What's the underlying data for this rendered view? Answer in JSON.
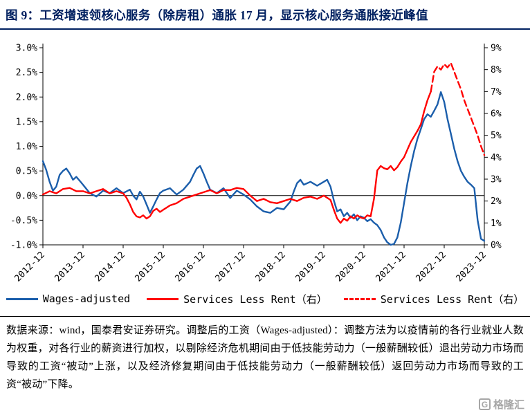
{
  "title": "图 9：工资增速领核心服务（除房租）通胀 17 月，显示核心服务通胀接近峰值",
  "note": "数据来源：wind，国泰君安证券研究。调整后的工资（Wages-adjusted）：调整方法为以疫情前的各行业就业人数为权重，对各行业的薪资进行加权，以剔除经济危机期间由于低技能劳动力（一般薪酬较低）退出劳动力市场而导致的工资“被动”上涨，以及经济修复期间由于低技能劳动力（一般薪酬较低）返回劳动力市场而导致的工资“被动”下降。",
  "watermark": {
    "text": "格隆汇",
    "icon_letter": "G"
  },
  "colors": {
    "title_accent": "#002060",
    "wages_blue": "#1b5eab",
    "services_red": "#ff0000"
  },
  "chart_data": {
    "type": "line",
    "title": "工资增速领核心服务（除房租）通胀 17 月",
    "x_unit": "months since 2012-12",
    "x_tick_labels": [
      "2012-12",
      "2013-12",
      "2014-12",
      "2015-12",
      "2016-12",
      "2017-12",
      "2018-12",
      "2019-12",
      "2020-12",
      "2021-12",
      "2022-12",
      "2023-12"
    ],
    "x_tick_positions": [
      0,
      12,
      24,
      36,
      48,
      60,
      72,
      84,
      96,
      108,
      120,
      132
    ],
    "x_range": [
      0,
      132
    ],
    "left_axis": {
      "min": -1.0,
      "max": 3.0,
      "step": 0.5,
      "tick_labels": [
        "3.0%",
        "2.5%",
        "2.0%",
        "1.5%",
        "1.0%",
        "0.5%",
        "0.0%",
        "-0.5%",
        "-1.0%"
      ]
    },
    "right_axis": {
      "min": 0,
      "max": 9,
      "step": 1,
      "tick_labels": [
        "9%",
        "8%",
        "7%",
        "6%",
        "5%",
        "4%",
        "3%",
        "2%",
        "1%",
        "0%"
      ]
    },
    "grid": false,
    "zero_line_left_axis": true,
    "legend_position": "bottom",
    "series": [
      {
        "name": "Wages-adjusted",
        "axis": "left",
        "color": "#1b5eab",
        "dash": false,
        "x": [
          0,
          1,
          2,
          3,
          4,
          5,
          6,
          7,
          8,
          9,
          10,
          11,
          12,
          14,
          16,
          18,
          20,
          22,
          24,
          26,
          27,
          28,
          29,
          30,
          31,
          32,
          33,
          34,
          35,
          36,
          38,
          40,
          42,
          44,
          45,
          46,
          47,
          48,
          49,
          50,
          52,
          54,
          56,
          58,
          60,
          62,
          64,
          66,
          68,
          70,
          72,
          74,
          75,
          76,
          77,
          78,
          80,
          82,
          84,
          85,
          86,
          87,
          88,
          89,
          90,
          91,
          92,
          93,
          94,
          95,
          96,
          97,
          98,
          99,
          100,
          101,
          102,
          103,
          104,
          105,
          106,
          107,
          108,
          109,
          110,
          111,
          112,
          113,
          114,
          115,
          116,
          117,
          118,
          119,
          120,
          121,
          122,
          123,
          124,
          125,
          126,
          127,
          128,
          129,
          130,
          131,
          132
        ],
        "y": [
          0.7,
          0.52,
          0.28,
          0.1,
          0.18,
          0.42,
          0.5,
          0.55,
          0.45,
          0.32,
          0.38,
          0.3,
          0.22,
          0.05,
          -0.02,
          0.1,
          0.05,
          0.15,
          0.05,
          0.12,
          0.0,
          -0.08,
          0.08,
          -0.02,
          -0.18,
          -0.35,
          -0.22,
          -0.08,
          0.05,
          0.1,
          0.15,
          0.02,
          0.12,
          0.28,
          0.42,
          0.55,
          0.6,
          0.45,
          0.28,
          0.12,
          0.05,
          0.15,
          -0.05,
          0.1,
          0.02,
          -0.08,
          -0.22,
          -0.32,
          -0.35,
          -0.25,
          -0.28,
          -0.12,
          0.08,
          0.25,
          0.32,
          0.22,
          0.28,
          0.2,
          0.28,
          0.32,
          0.18,
          -0.1,
          -0.32,
          -0.28,
          -0.42,
          -0.35,
          -0.45,
          -0.38,
          -0.5,
          -0.42,
          -0.45,
          -0.52,
          -0.48,
          -0.55,
          -0.6,
          -0.7,
          -0.85,
          -0.95,
          -1.0,
          -0.98,
          -0.85,
          -0.55,
          -0.15,
          0.25,
          0.6,
          0.9,
          1.15,
          1.35,
          1.55,
          1.65,
          1.6,
          1.72,
          1.85,
          2.1,
          1.9,
          1.55,
          1.25,
          0.95,
          0.7,
          0.5,
          0.38,
          0.28,
          0.22,
          0.15,
          -0.5,
          -0.88,
          -0.92
        ]
      },
      {
        "name": "Services Less Rent（右）",
        "axis": "right",
        "color": "#ff0000",
        "dash": false,
        "x": [
          0,
          2,
          4,
          6,
          8,
          10,
          12,
          14,
          16,
          18,
          20,
          22,
          24,
          25,
          26,
          27,
          28,
          29,
          30,
          31,
          32,
          33,
          34,
          35,
          36,
          38,
          40,
          42,
          44,
          46,
          48,
          50,
          52,
          54,
          56,
          58,
          60,
          62,
          64,
          66,
          68,
          70,
          72,
          74,
          76,
          78,
          80,
          82,
          84,
          86,
          87,
          88,
          89,
          90,
          91,
          92,
          93,
          94,
          95,
          96,
          97,
          98,
          99,
          100,
          101,
          102,
          103,
          104,
          105,
          106,
          107,
          108,
          109,
          110,
          111,
          112,
          113,
          114,
          115,
          116
        ],
        "y": [
          2.3,
          2.45,
          2.35,
          2.55,
          2.6,
          2.45,
          2.45,
          2.35,
          2.45,
          2.55,
          2.35,
          2.45,
          2.35,
          2.15,
          1.85,
          1.5,
          1.3,
          1.25,
          1.35,
          1.2,
          1.3,
          1.55,
          1.65,
          1.5,
          1.6,
          1.8,
          1.9,
          2.1,
          2.2,
          2.3,
          2.4,
          2.5,
          2.35,
          2.5,
          2.5,
          2.6,
          2.55,
          2.25,
          2.0,
          2.1,
          1.95,
          1.9,
          2.0,
          2.1,
          2.0,
          2.15,
          2.2,
          2.1,
          2.25,
          2.05,
          1.6,
          1.2,
          1.0,
          1.2,
          1.1,
          1.3,
          1.2,
          1.35,
          1.25,
          1.2,
          1.35,
          1.3,
          2.1,
          3.4,
          3.6,
          3.5,
          3.45,
          3.6,
          3.4,
          3.55,
          3.8,
          4.0,
          4.35,
          4.7,
          4.95,
          5.2,
          5.5,
          6.1,
          6.6,
          7.0
        ]
      },
      {
        "name": "Services Less Rent（右）",
        "axis": "right",
        "color": "#ff0000",
        "dash": true,
        "x": [
          116,
          117,
          118,
          119,
          120,
          121,
          122,
          123,
          124,
          125,
          126,
          127,
          128,
          129,
          130,
          131,
          132
        ],
        "y": [
          7.0,
          7.9,
          8.15,
          8.0,
          8.25,
          8.1,
          8.3,
          7.9,
          7.5,
          7.1,
          6.6,
          6.2,
          5.8,
          5.4,
          5.0,
          4.5,
          4.1
        ]
      }
    ],
    "legend": [
      {
        "label": "Wages-adjusted",
        "color": "#1b5eab",
        "dash": false
      },
      {
        "label": "Services Less Rent（右）",
        "color": "#ff0000",
        "dash": false
      },
      {
        "label": "Services Less Rent（右）",
        "color": "#ff0000",
        "dash": true
      }
    ]
  }
}
